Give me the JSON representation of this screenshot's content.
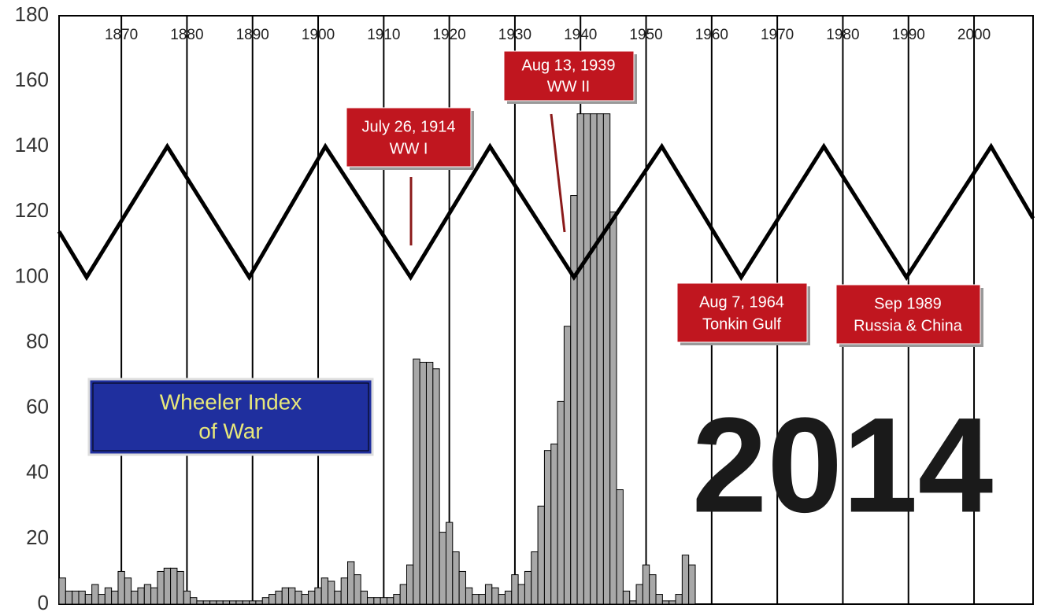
{
  "chart_data": {
    "type": "bar",
    "xlim": [
      1860.5,
      2009
    ],
    "xticks": [
      1870,
      1880,
      1890,
      1900,
      1910,
      1920,
      1930,
      1940,
      1950,
      1960,
      1970,
      1980,
      1990,
      2000
    ],
    "ylim": [
      0,
      180
    ],
    "yticks": [
      0,
      20,
      40,
      60,
      80,
      100,
      120,
      140,
      160,
      180
    ],
    "grid": true,
    "series": [
      {
        "type": "bar",
        "color": "#a8a8a8",
        "x": [
          1861,
          1862,
          1863,
          1864,
          1865,
          1866,
          1867,
          1868,
          1869,
          1870,
          1871,
          1872,
          1873,
          1874,
          1875,
          1876,
          1877,
          1878,
          1879,
          1880,
          1881,
          1882,
          1883,
          1884,
          1885,
          1886,
          1887,
          1888,
          1889,
          1890,
          1891,
          1892,
          1893,
          1894,
          1895,
          1896,
          1897,
          1898,
          1899,
          1900,
          1901,
          1902,
          1903,
          1904,
          1905,
          1906,
          1907,
          1908,
          1909,
          1910,
          1911,
          1912,
          1913,
          1914,
          1915,
          1916,
          1917,
          1918,
          1919,
          1920,
          1921,
          1922,
          1923,
          1924,
          1925,
          1926,
          1927,
          1928,
          1929,
          1930,
          1931,
          1932,
          1933,
          1934,
          1935,
          1936,
          1937,
          1938,
          1939,
          1940,
          1941,
          1942,
          1943,
          1944,
          1945,
          1946,
          1947,
          1948,
          1949,
          1950,
          1951,
          1952,
          1953,
          1954,
          1955,
          1956,
          1957
        ],
        "values": [
          8,
          4,
          4,
          4,
          3,
          6,
          3,
          5,
          4,
          10,
          8,
          4,
          5,
          6,
          5,
          10,
          11,
          11,
          10,
          4,
          2,
          1,
          1,
          1,
          1,
          1,
          1,
          1,
          1,
          1,
          1,
          2,
          3,
          4,
          5,
          5,
          4,
          3,
          4,
          5,
          8,
          7,
          4,
          8,
          13,
          9,
          4,
          2,
          2,
          2,
          2,
          3,
          6,
          12,
          75,
          74,
          74,
          72,
          22,
          25,
          16,
          10,
          5,
          3,
          3,
          6,
          5,
          3,
          4,
          9,
          6,
          10,
          16,
          30,
          47,
          49,
          62,
          85,
          125,
          150,
          150,
          150,
          150,
          150,
          120,
          35,
          4,
          1,
          6,
          12,
          9,
          3,
          1,
          1,
          3,
          15,
          12
        ]
      },
      {
        "type": "line",
        "color": "#000000",
        "x": [
          1860.5,
          1864.7,
          1877,
          1889.5,
          1901.1,
          1914.1,
          1926.2,
          1939,
          1952.4,
          1964.5,
          1977.1,
          1989.7,
          2002.6,
          2009
        ],
        "values": [
          114,
          100,
          140,
          100,
          140,
          100,
          140,
          100,
          140,
          100,
          140,
          100,
          140,
          118
        ]
      }
    ],
    "annotations": [
      {
        "lines": [
          "July 26, 1914",
          "WW I"
        ]
      },
      {
        "lines": [
          "Aug 13, 1939",
          "WW II"
        ]
      },
      {
        "lines": [
          "Aug 7, 1964",
          "Tonkin Gulf"
        ]
      },
      {
        "lines": [
          "Sep 1989",
          "Russia & China"
        ]
      }
    ],
    "title": {
      "lines": [
        "Wheeler Index",
        "of War"
      ]
    },
    "big_label": "2014"
  }
}
